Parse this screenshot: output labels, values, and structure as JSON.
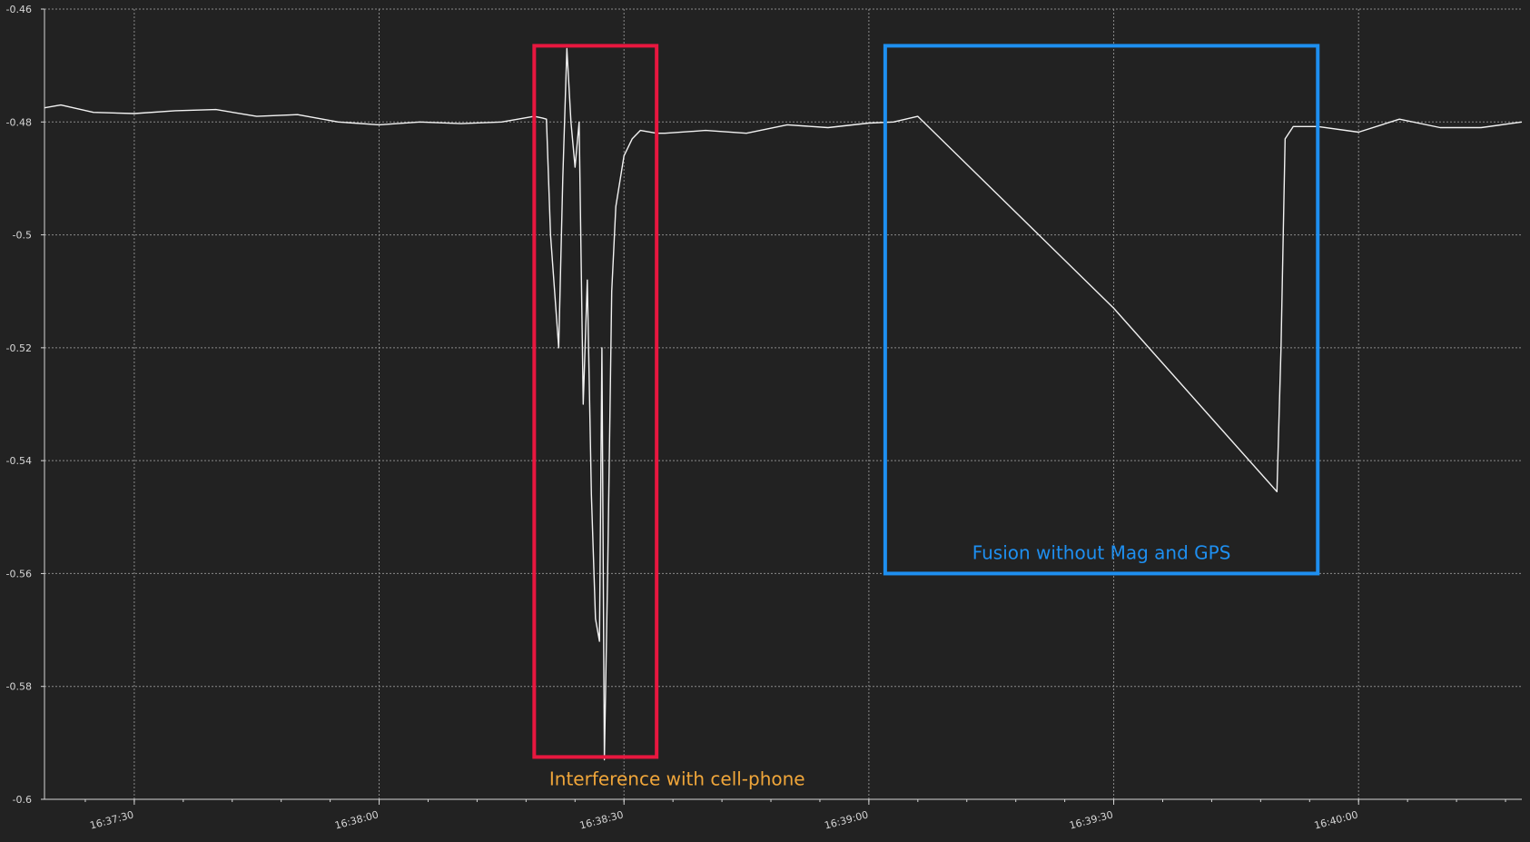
{
  "chart_data": {
    "type": "line",
    "title": "",
    "xlabel": "",
    "ylabel": "",
    "grid": true,
    "colors": {
      "background": "#222222",
      "grid": "#8a8a8a",
      "line": "#f2f2f2",
      "axis": "#d6d6d6",
      "annotation_red": "#e8173f",
      "annotation_blue": "#1e8ff0",
      "annotation_text_orange": "#f0a63a",
      "annotation_text_blue": "#1e8ff0"
    },
    "xlim": [
      "16:37:19",
      "16:40:20"
    ],
    "ylim": [
      -0.6,
      -0.46
    ],
    "y_ticks": [
      -0.46,
      -0.48,
      -0.5,
      -0.52,
      -0.54,
      -0.56,
      -0.58,
      -0.6
    ],
    "y_tick_labels": [
      "-0.46",
      "-0.48",
      "-0.5",
      "-0.52",
      "-0.54",
      "-0.56",
      "-0.58",
      "-0.6"
    ],
    "x_ticks": [
      "16:37:30",
      "16:38:00",
      "16:38:30",
      "16:39:00",
      "16:39:30",
      "16:40:00"
    ],
    "x_minor_tick_seconds": 6,
    "series": [
      {
        "x": [
          "16:37:19",
          "16:37:21",
          "16:37:25",
          "16:37:30",
          "16:37:35",
          "16:37:40",
          "16:37:45",
          "16:37:50",
          "16:37:55",
          "16:38:00",
          "16:38:05",
          "16:38:10",
          "16:38:15",
          "16:38:19",
          "16:38:20",
          "16:38:20.5",
          "16:38:21",
          "16:38:22",
          "16:38:22.5",
          "16:38:23",
          "16:38:23.5",
          "16:38:24",
          "16:38:24.5",
          "16:38:25",
          "16:38:25.5",
          "16:38:26",
          "16:38:26.5",
          "16:38:27",
          "16:38:27.3",
          "16:38:27.6",
          "16:38:28",
          "16:38:28.5",
          "16:38:29",
          "16:38:30",
          "16:38:31",
          "16:38:32",
          "16:38:34",
          "16:38:35",
          "16:38:40",
          "16:38:45",
          "16:38:50",
          "16:38:55",
          "16:39:00",
          "16:39:03",
          "16:39:06",
          "16:39:30",
          "16:39:50",
          "16:39:50.5",
          "16:39:51",
          "16:39:52",
          "16:39:55",
          "16:40:00",
          "16:40:05",
          "16:40:10",
          "16:40:15",
          "16:40:20"
        ],
        "values": [
          -0.4775,
          -0.477,
          -0.4783,
          -0.4785,
          -0.478,
          -0.4778,
          -0.479,
          -0.4787,
          -0.48,
          -0.4805,
          -0.48,
          -0.4803,
          -0.48,
          -0.479,
          -0.4793,
          -0.4795,
          -0.5,
          -0.52,
          -0.49,
          -0.467,
          -0.48,
          -0.488,
          -0.48,
          -0.53,
          -0.508,
          -0.546,
          -0.568,
          -0.572,
          -0.52,
          -0.593,
          -0.56,
          -0.51,
          -0.495,
          -0.486,
          -0.483,
          -0.4815,
          -0.482,
          -0.482,
          -0.4815,
          -0.482,
          -0.4805,
          -0.481,
          -0.4802,
          -0.48,
          -0.479,
          -0.513,
          -0.5455,
          -0.52,
          -0.483,
          -0.4808,
          -0.4808,
          -0.4818,
          -0.4795,
          -0.481,
          -0.481,
          -0.48
        ]
      }
    ],
    "annotations": [
      {
        "label": "Interference with cell-phone",
        "x_range": [
          "16:38:19",
          "16:38:34"
        ],
        "y_range": [
          -0.5925,
          -0.4665
        ],
        "box_color": "#e8173f",
        "text_color": "#f0a63a"
      },
      {
        "label": "Fusion without Mag and GPS",
        "x_range": [
          "16:39:02",
          "16:39:55"
        ],
        "y_range": [
          -0.56,
          -0.4665
        ],
        "box_color": "#1e8ff0",
        "text_color": "#1e8ff0"
      }
    ]
  }
}
